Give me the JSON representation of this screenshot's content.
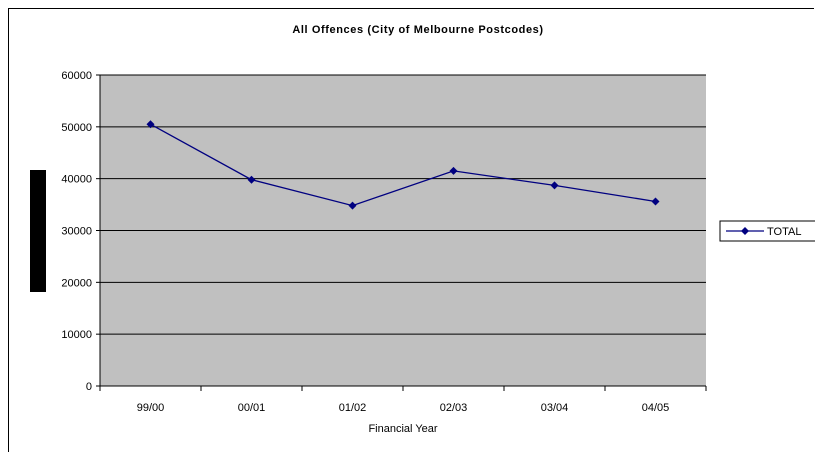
{
  "chart_data": {
    "type": "line",
    "title": "All Offences (City of Melbourne Postcodes)",
    "xlabel": "Financial Year",
    "ylabel": "",
    "categories": [
      "99/00",
      "00/01",
      "01/02",
      "02/03",
      "03/04",
      "04/05"
    ],
    "series": [
      {
        "name": "TOTAL",
        "values": [
          50500,
          39800,
          34800,
          41500,
          38700,
          35600
        ]
      }
    ],
    "ylim": [
      0,
      60000
    ],
    "yticks": [
      "0",
      "10000",
      "20000",
      "30000",
      "40000",
      "50000",
      "60000"
    ],
    "grid": true,
    "legend_position": "right",
    "colors": {
      "plot_background": "#c0c0c0",
      "series_line": "#000080",
      "gridline": "#000000"
    }
  }
}
